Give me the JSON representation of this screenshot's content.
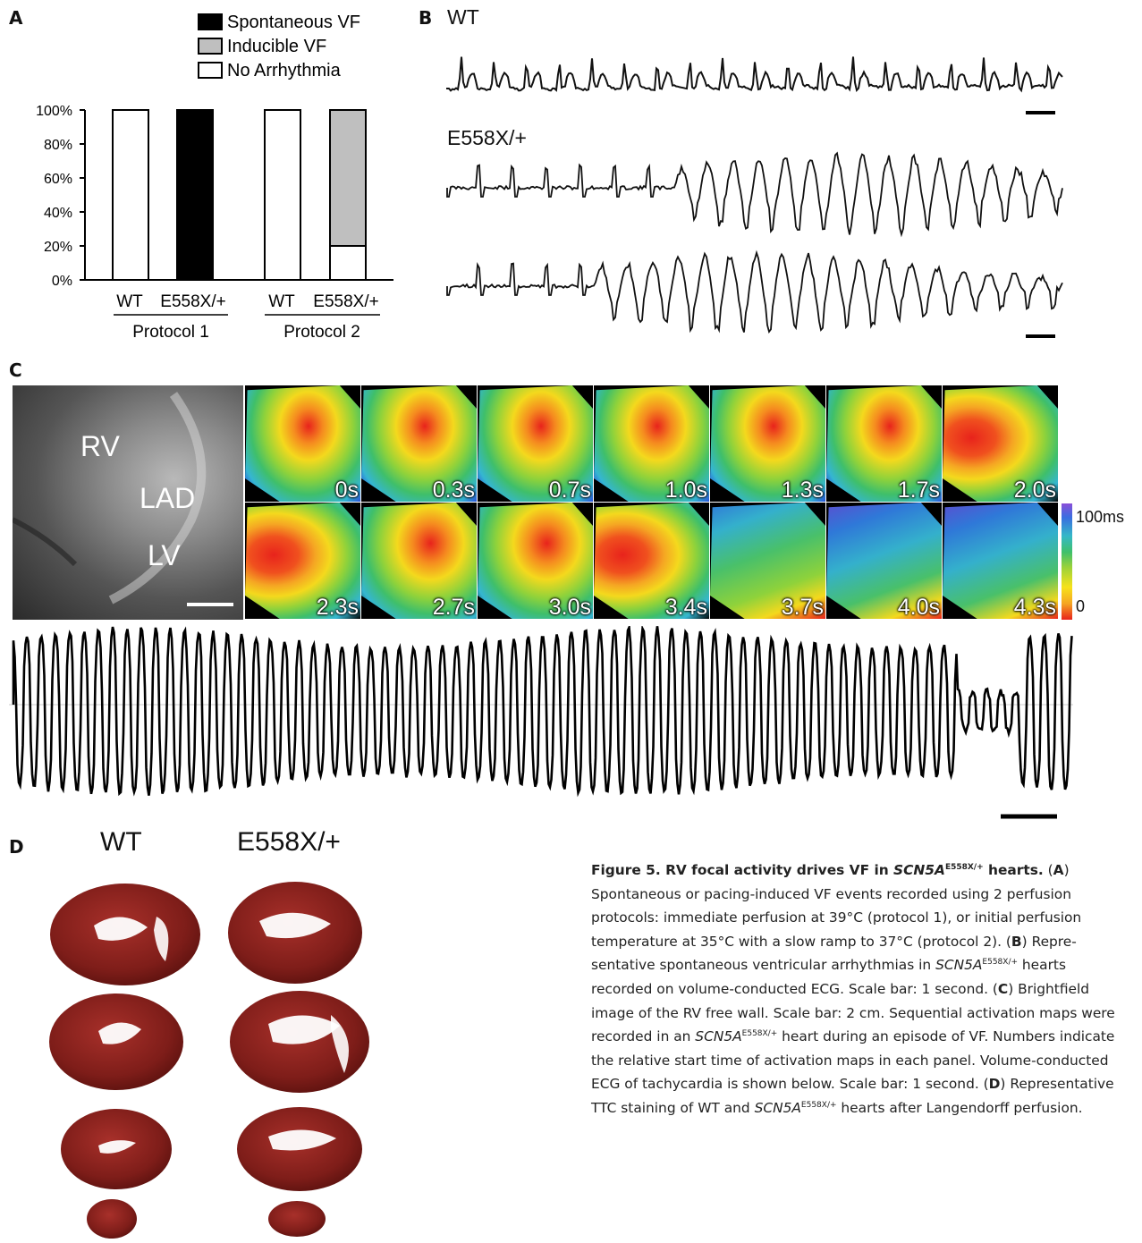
{
  "panel_a": {
    "label": "A",
    "legend": [
      "Spontaneous VF",
      "Inducible VF",
      "No Arrhythmia"
    ],
    "colors": {
      "spontaneous": "#000000",
      "inducible": "#bfbfbf",
      "none": "#ffffff"
    },
    "chart_data": {
      "type": "bar",
      "stacked": true,
      "categories": [
        "WT",
        "E558X/+",
        "WT",
        "E558X/+"
      ],
      "groups": [
        "Protocol 1",
        "Protocol 2"
      ],
      "series": [
        {
          "name": "No Arrhythmia",
          "values": [
            100,
            0,
            100,
            20
          ]
        },
        {
          "name": "Inducible VF",
          "values": [
            0,
            0,
            0,
            80
          ]
        },
        {
          "name": "Spontaneous VF",
          "values": [
            0,
            100,
            0,
            0
          ]
        }
      ],
      "yticks": [
        "0%",
        "20%",
        "40%",
        "60%",
        "80%",
        "100%"
      ],
      "ylim": [
        0,
        100
      ],
      "legend_position": "top"
    }
  },
  "panel_b": {
    "label": "B",
    "wt_label": "WT",
    "mut_label": "E558X/+"
  },
  "panel_c": {
    "label": "C",
    "brightfield_labels": [
      "RV",
      "LAD",
      "LV"
    ],
    "map_times": [
      "0s",
      "0.3s",
      "0.7s",
      "1.0s",
      "1.3s",
      "1.7s",
      "2.0s",
      "2.3s",
      "2.7s",
      "3.0s",
      "3.4s",
      "3.7s",
      "4.0s",
      "4.3s"
    ],
    "colorbar_max": "100ms",
    "colorbar_min": "0"
  },
  "panel_d": {
    "label": "D",
    "wt_label": "WT",
    "mut_label": "E558X/+"
  },
  "caption": {
    "title_prefix": "Figure 5. RV focal activity drives VF in ",
    "gene": "SCN5A",
    "sup": "E558X/+",
    "title_suffix": " hearts.",
    "a_label": "A",
    "a_text": "Spontaneous or pacing-induced VF events recorded using 2 perfusion protocols: immediate perfusion at 39°C (protocol 1), or initial perfusion temperature at 35°C with a slow ramp to 37°C (protocol 2).",
    "b_label": "B",
    "b_text1": "Repre­sentative spontaneous ventricular arrhythmias in ",
    "b_text2": " hearts recorded on volume-conducted ECG. Scale bar: 1 second.",
    "c_label": "C",
    "c_text1": "Brightfield image of the RV free wall. Scale bar: 2 cm. Sequential activation maps were recorded in an ",
    "c_text2": " heart during an episode of VF. Num­bers indicate the relative start time of activation maps in each panel. Volume-conducted ECG of tachycardia is shown below. Scale bar: 1 second.",
    "d_label": "D",
    "d_text1": "Representative TTC staining of WT and ",
    "d_text2": " hearts after Langendorff perfusion."
  }
}
